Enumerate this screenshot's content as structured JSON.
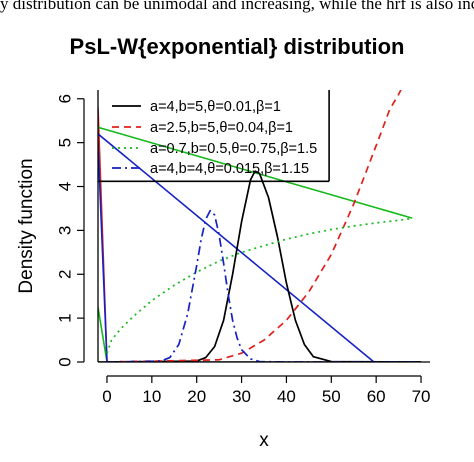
{
  "caption": "y distribution can be unimodal and increasing, while the hrf  is also increas",
  "chart_data": {
    "type": "line",
    "title": "PsL-W{exponential} distribution",
    "xlabel": "x",
    "ylabel": "Density function",
    "xlim": [
      -2,
      72
    ],
    "ylim": [
      0,
      6.2
    ],
    "xticks": [
      0,
      10,
      20,
      30,
      40,
      50,
      60,
      70
    ],
    "yticks": [
      0,
      1,
      2,
      3,
      4,
      5,
      6
    ],
    "legend_position": "top-left inside",
    "series": [
      {
        "name": "a=4,b=5,θ=0.01,β=1",
        "color": "#000000",
        "dash": "solid",
        "x": [
          0,
          20,
          22,
          24,
          26,
          28,
          30,
          32,
          33,
          34,
          36,
          38,
          40,
          42,
          44,
          46,
          50,
          70
        ],
        "y": [
          0,
          0.02,
          0.1,
          0.35,
          0.95,
          2.0,
          3.2,
          4.15,
          4.35,
          4.3,
          3.75,
          2.85,
          1.8,
          0.95,
          0.4,
          0.12,
          0.01,
          0
        ]
      },
      {
        "name": "a=2.5,b=5,θ=0.04,β=1",
        "color": "#e0201b",
        "dash": "dashed",
        "x": [
          0,
          25,
          30,
          35,
          40,
          45,
          50,
          55,
          58,
          61,
          63,
          65,
          67,
          69
        ],
        "y": [
          0,
          0.05,
          0.2,
          0.5,
          0.95,
          1.6,
          2.45,
          3.6,
          4.4,
          5.2,
          5.75,
          6.1,
          6.5,
          6.9
        ]
      },
      {
        "name": "a=0.7,b=0.5,θ=0.75,β=1.5",
        "color": "#16b91b",
        "dash": "dotted",
        "x": [
          0,
          1,
          3,
          6,
          10,
          15,
          20,
          25,
          30,
          35,
          40,
          45,
          50,
          55,
          60,
          65,
          68
        ],
        "y": [
          0.2,
          0.5,
          0.75,
          1.05,
          1.4,
          1.75,
          2.05,
          2.3,
          2.5,
          2.65,
          2.8,
          2.92,
          3.02,
          3.1,
          3.17,
          3.23,
          3.27
        ]
      },
      {
        "name": "a=4,b=4,θ=0.015,β=1.15",
        "color": "#1521c4",
        "dash": "dashdot",
        "x": [
          0,
          12,
          14,
          16,
          18,
          20,
          21,
          22,
          23,
          24,
          25,
          26,
          27,
          28,
          29,
          30,
          32,
          34,
          40,
          70
        ],
        "y": [
          0,
          0.02,
          0.1,
          0.4,
          1.1,
          2.2,
          2.8,
          3.25,
          3.45,
          3.35,
          2.9,
          2.25,
          1.55,
          0.95,
          0.55,
          0.28,
          0.07,
          0.01,
          0,
          0
        ]
      }
    ],
    "extra_lines": [
      {
        "color": "#000000",
        "x": [
          -2,
          0
        ],
        "y": [
          0,
          0
        ]
      },
      {
        "color": "#e0201b",
        "x": [
          -2,
          0
        ],
        "y": [
          5.8,
          0
        ]
      },
      {
        "color": "#16b91b",
        "x": [
          -2,
          0
        ],
        "y": [
          1.25,
          0
        ]
      },
      {
        "color": "#16b91b",
        "x": [
          -2,
          68
        ],
        "y": [
          5.35,
          3.28
        ]
      },
      {
        "color": "#1521c4",
        "x": [
          -2,
          0
        ],
        "y": [
          5.0,
          0
        ]
      },
      {
        "color": "#1521c4",
        "x": [
          -2,
          59.5
        ],
        "y": [
          5.2,
          0
        ]
      },
      {
        "color": "#000000",
        "x": [
          -2,
          49.5
        ],
        "y": [
          4.12,
          4.12
        ]
      },
      {
        "color": "#000000",
        "x": [
          49.5,
          49.5
        ],
        "y": [
          4.12,
          6.2
        ]
      },
      {
        "color": "#000000",
        "x": [
          0,
          70
        ],
        "y": [
          0,
          0
        ]
      }
    ]
  }
}
